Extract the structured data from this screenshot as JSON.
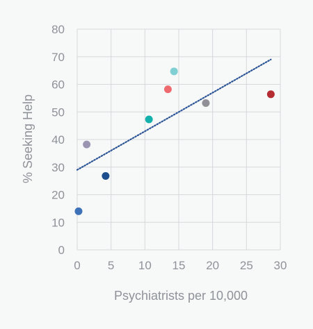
{
  "chart_data": {
    "type": "scatter",
    "xlabel": "Psychiatrists per 10,000",
    "ylabel": "% Seeking Help",
    "xlim": [
      0,
      30
    ],
    "ylim": [
      0,
      80
    ],
    "xticks": [
      "0",
      "5",
      "10",
      "15",
      "20",
      "25",
      "30"
    ],
    "yticks": [
      "0",
      "10",
      "20",
      "30",
      "40",
      "50",
      "60",
      "70",
      "80"
    ],
    "grid": true,
    "legend": "none",
    "points": [
      {
        "x": 0.2,
        "y": 14,
        "color": "#3d72b8"
      },
      {
        "x": 1.4,
        "y": 38.2,
        "color": "#9c95b2"
      },
      {
        "x": 4.2,
        "y": 26.8,
        "color": "#1d4f8f"
      },
      {
        "x": 10.6,
        "y": 47.3,
        "color": "#14b1ac"
      },
      {
        "x": 13.4,
        "y": 58.2,
        "color": "#ee6a6f"
      },
      {
        "x": 14.3,
        "y": 64.7,
        "color": "#7fcfd3"
      },
      {
        "x": 19.0,
        "y": 53.2,
        "color": "#909096"
      },
      {
        "x": 28.6,
        "y": 56.4,
        "color": "#b32d33"
      }
    ],
    "trendline": {
      "x": [
        0,
        28.6
      ],
      "y": [
        29,
        69
      ],
      "color": "#2c5596",
      "style": "dotted"
    }
  }
}
